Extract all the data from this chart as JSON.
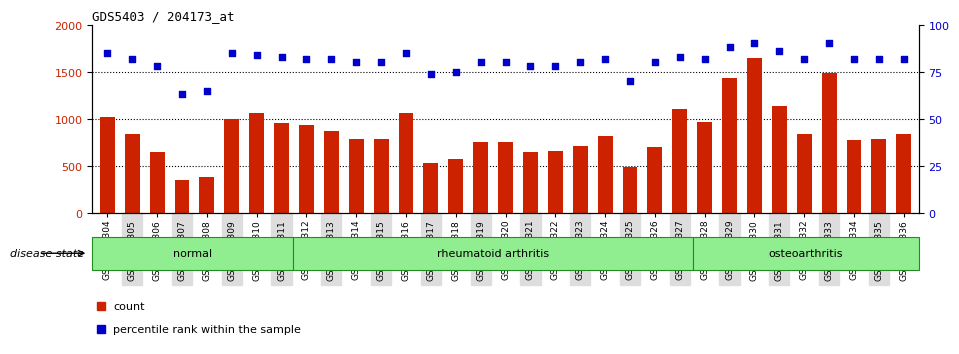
{
  "title": "GDS5403 / 204173_at",
  "samples": [
    "GSM1337304",
    "GSM1337305",
    "GSM1337306",
    "GSM1337307",
    "GSM1337308",
    "GSM1337309",
    "GSM1337310",
    "GSM1337311",
    "GSM1337312",
    "GSM1337313",
    "GSM1337314",
    "GSM1337315",
    "GSM1337316",
    "GSM1337317",
    "GSM1337318",
    "GSM1337319",
    "GSM1337320",
    "GSM1337321",
    "GSM1337322",
    "GSM1337323",
    "GSM1337324",
    "GSM1337325",
    "GSM1337326",
    "GSM1337327",
    "GSM1337328",
    "GSM1337329",
    "GSM1337330",
    "GSM1337331",
    "GSM1337332",
    "GSM1337333",
    "GSM1337334",
    "GSM1337335",
    "GSM1337336"
  ],
  "bar_values": [
    1020,
    845,
    650,
    355,
    380,
    1000,
    1060,
    960,
    940,
    875,
    790,
    785,
    1065,
    530,
    575,
    760,
    760,
    650,
    660,
    710,
    815,
    490,
    700,
    1105,
    970,
    1430,
    1650,
    1135,
    845,
    1490,
    775,
    785,
    845
  ],
  "dot_values": [
    85,
    82,
    78,
    63,
    65,
    85,
    84,
    83,
    82,
    82,
    80,
    80,
    85,
    74,
    75,
    80,
    80,
    78,
    78,
    80,
    82,
    70,
    80,
    83,
    82,
    88,
    90,
    86,
    82,
    90,
    82,
    82,
    82
  ],
  "groups": [
    {
      "label": "normal",
      "start": 0,
      "end": 8,
      "color": "#90EE90"
    },
    {
      "label": "rheumatoid arthritis",
      "start": 8,
      "end": 24,
      "color": "#90EE90"
    },
    {
      "label": "osteoarthritis",
      "start": 24,
      "end": 33,
      "color": "#90EE90"
    }
  ],
  "bar_color": "#CC2200",
  "dot_color": "#0000CC",
  "ylim_left": [
    0,
    2000
  ],
  "ylim_right": [
    0,
    100
  ],
  "yticks_left": [
    0,
    500,
    1000,
    1500,
    2000
  ],
  "yticks_right": [
    0,
    25,
    50,
    75,
    100
  ],
  "grid_values": [
    500,
    1000,
    1500
  ],
  "background_color": "#ffffff",
  "tick_label_color_left": "#CC2200",
  "tick_label_color_right": "#0000CC",
  "legend_count_label": "count",
  "legend_percentile_label": "percentile rank within the sample",
  "disease_state_label": "disease state"
}
